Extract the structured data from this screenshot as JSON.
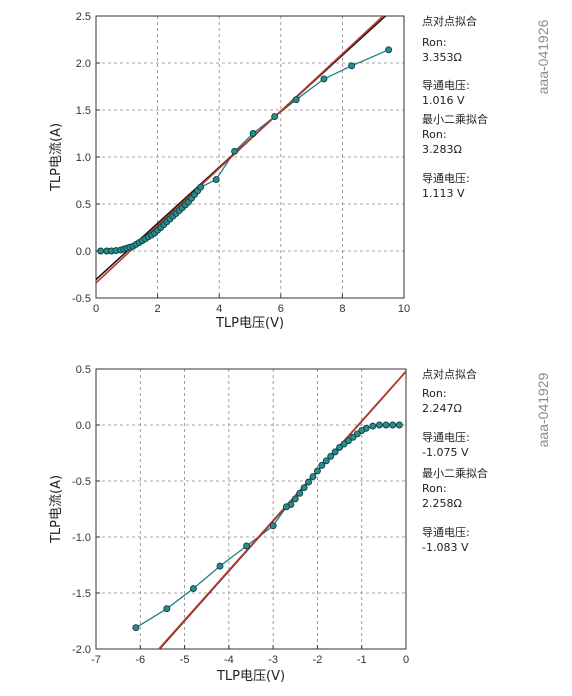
{
  "charts": [
    {
      "code": "aaa-041926",
      "xlabel": "TLP电压(V)",
      "ylabel": "TLP电流(A)",
      "xlim": [
        0,
        10
      ],
      "ylim": [
        -0.5,
        2.5
      ],
      "xticks": [
        0,
        2,
        4,
        6,
        8,
        10
      ],
      "yticks": [
        -0.5,
        0.0,
        0.5,
        1.0,
        1.5,
        2.0,
        2.5
      ],
      "xtick_labels": [
        "0",
        "2",
        "4",
        "6",
        "8",
        "10"
      ],
      "ytick_labels": [
        "-0.5",
        "0.0",
        "0.5",
        "1.0",
        "1.5",
        "2.0",
        "2.5"
      ],
      "annotations": [
        "点对点拟合",
        "Ron:",
        "3.353Ω",
        "导通电压:",
        "1.016 V",
        "最小二乘拟合",
        "Ron:",
        "3.283Ω",
        "导通电压:",
        "1.113 V"
      ],
      "chart_data": {
        "type": "scatter",
        "points": [
          [
            0.15,
            0.0
          ],
          [
            0.35,
            0.0
          ],
          [
            0.5,
            0.0
          ],
          [
            0.65,
            0.005
          ],
          [
            0.8,
            0.01
          ],
          [
            0.9,
            0.02
          ],
          [
            1.0,
            0.03
          ],
          [
            1.1,
            0.04
          ],
          [
            1.2,
            0.05
          ],
          [
            1.3,
            0.07
          ],
          [
            1.4,
            0.09
          ],
          [
            1.5,
            0.11
          ],
          [
            1.6,
            0.13
          ],
          [
            1.7,
            0.15
          ],
          [
            1.8,
            0.17
          ],
          [
            1.9,
            0.19
          ],
          [
            2.0,
            0.22
          ],
          [
            2.1,
            0.25
          ],
          [
            2.2,
            0.28
          ],
          [
            2.3,
            0.31
          ],
          [
            2.4,
            0.34
          ],
          [
            2.5,
            0.37
          ],
          [
            2.6,
            0.4
          ],
          [
            2.7,
            0.43
          ],
          [
            2.8,
            0.46
          ],
          [
            2.9,
            0.49
          ],
          [
            3.0,
            0.52
          ],
          [
            3.1,
            0.56
          ],
          [
            3.2,
            0.6
          ],
          [
            3.3,
            0.64
          ],
          [
            3.4,
            0.68
          ],
          [
            3.9,
            0.76
          ],
          [
            4.5,
            1.06
          ],
          [
            5.1,
            1.25
          ],
          [
            5.8,
            1.43
          ],
          [
            6.5,
            1.61
          ],
          [
            7.4,
            1.83
          ],
          [
            8.3,
            1.97
          ],
          [
            9.5,
            2.14
          ]
        ],
        "lines": [
          {
            "color": "#1a1a1a",
            "x": [
              0,
              9.6
            ],
            "y": [
              -0.303,
              2.56
            ]
          },
          {
            "color": "#c0392b",
            "x": [
              0,
              9.6
            ],
            "y": [
              -0.339,
              2.585
            ]
          }
        ]
      }
    },
    {
      "code": "aaa-041929",
      "xlabel": "TLP电压(V)",
      "ylabel": "TLP电流(A)",
      "xlim": [
        -7,
        0
      ],
      "ylim": [
        -2.0,
        0.5
      ],
      "xticks": [
        -7,
        -6,
        -5,
        -4,
        -3,
        -2,
        -1,
        0
      ],
      "yticks": [
        -2.0,
        -1.5,
        -1.0,
        -0.5,
        0.0,
        0.5
      ],
      "xtick_labels": [
        "-7",
        "-6",
        "-5",
        "-4",
        "-3",
        "-2",
        "-1",
        "0"
      ],
      "ytick_labels": [
        "-2.0",
        "-1.5",
        "-1.0",
        "-0.5",
        "0.0",
        "0.5"
      ],
      "annotations": [
        "点对点拟合",
        "Ron:",
        "2.247Ω",
        "导通电压:",
        "-1.075 V",
        "最小二乘拟合",
        "Ron:",
        "2.258Ω",
        "导通电压:",
        "-1.083 V"
      ],
      "chart_data": {
        "type": "scatter",
        "points": [
          [
            -0.15,
            0.0
          ],
          [
            -0.3,
            0.0
          ],
          [
            -0.45,
            0.0
          ],
          [
            -0.6,
            0.0
          ],
          [
            -0.75,
            -0.01
          ],
          [
            -0.9,
            -0.03
          ],
          [
            -1.0,
            -0.05
          ],
          [
            -1.1,
            -0.08
          ],
          [
            -1.2,
            -0.11
          ],
          [
            -1.3,
            -0.14
          ],
          [
            -1.4,
            -0.17
          ],
          [
            -1.5,
            -0.2
          ],
          [
            -1.6,
            -0.24
          ],
          [
            -1.7,
            -0.28
          ],
          [
            -1.8,
            -0.32
          ],
          [
            -1.9,
            -0.36
          ],
          [
            -2.0,
            -0.41
          ],
          [
            -2.1,
            -0.46
          ],
          [
            -2.2,
            -0.51
          ],
          [
            -2.3,
            -0.56
          ],
          [
            -2.4,
            -0.61
          ],
          [
            -2.5,
            -0.66
          ],
          [
            -2.6,
            -0.71
          ],
          [
            -2.7,
            -0.73
          ],
          [
            -3.0,
            -0.9
          ],
          [
            -3.6,
            -1.08
          ],
          [
            -4.2,
            -1.26
          ],
          [
            -4.8,
            -1.46
          ],
          [
            -5.4,
            -1.64
          ],
          [
            -6.1,
            -1.81
          ]
        ],
        "lines": [
          {
            "color": "#1a1a1a",
            "x": [
              -5.7,
              0
            ],
            "y": [
              -2.06,
              0.478
            ]
          },
          {
            "color": "#c0392b",
            "x": [
              -5.65,
              0
            ],
            "y": [
              -2.03,
              0.48
            ]
          }
        ]
      }
    }
  ]
}
